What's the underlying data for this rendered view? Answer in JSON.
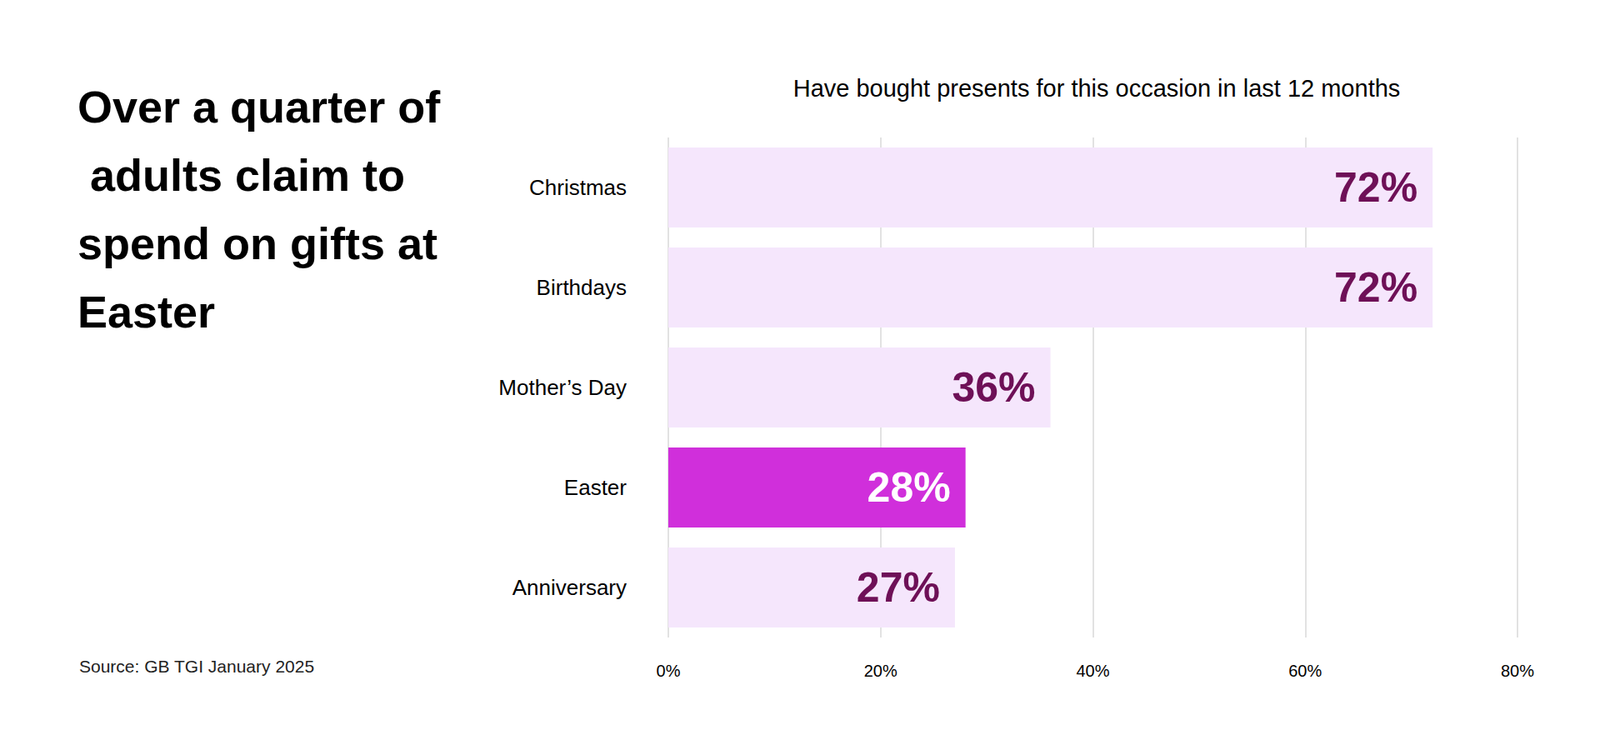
{
  "chart_data": {
    "type": "bar",
    "orientation": "horizontal",
    "title": "Over a quarter of adults claim to spend on gifts at Easter",
    "subtitle": "Have bought presents for this occasion in last 12 months",
    "annotation": "Source: GB TGI January 2025",
    "categories": [
      "Christmas",
      "Birthdays",
      "Mother’s Day",
      "Easter",
      "Anniversary"
    ],
    "values": [
      72,
      72,
      36,
      28,
      27
    ],
    "value_labels": [
      "72%",
      "72%",
      "36%",
      "28%",
      "27%"
    ],
    "colors": [
      "#f5e6fc",
      "#f5e6fc",
      "#f5e6fc",
      "#d02fdb",
      "#f5e6fc"
    ],
    "data_labels": true,
    "xlim": [
      0,
      80
    ],
    "xticks": [
      {
        "value": 0,
        "label": "0%"
      },
      {
        "value": 20,
        "label": "20%"
      },
      {
        "value": 40,
        "label": "40%"
      },
      {
        "value": 60,
        "label": "60%"
      },
      {
        "value": 80,
        "label": "80%"
      }
    ],
    "grid": true
  }
}
